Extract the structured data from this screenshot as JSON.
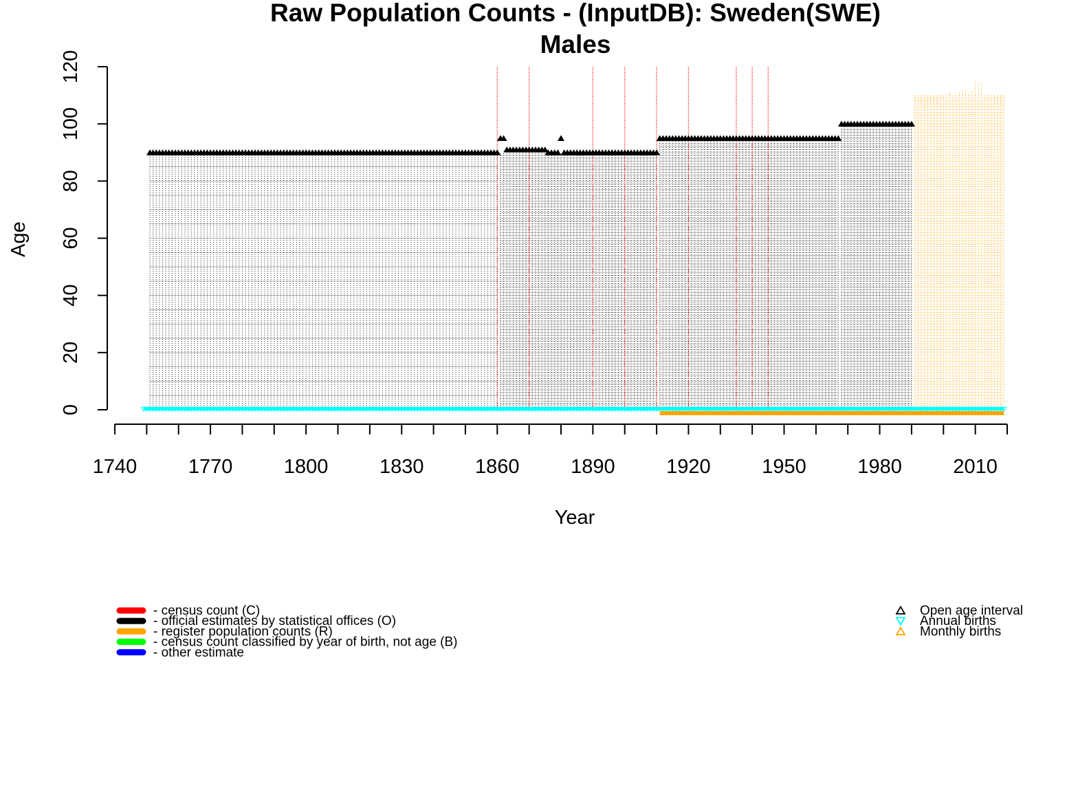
{
  "chart_data": {
    "type": "scatter",
    "title": "Raw Population Counts - (InputDB): Sweden(SWE)",
    "subtitle": "Males",
    "xlabel": "Year",
    "ylabel": "Age",
    "xlim": [
      1740,
      2020
    ],
    "ylim": [
      0,
      120
    ],
    "x_ticks": [
      1740,
      1770,
      1800,
      1830,
      1860,
      1890,
      1920,
      1950,
      1980,
      2010
    ],
    "y_ticks": [
      0,
      20,
      40,
      60,
      80,
      100,
      120
    ],
    "census_years": [
      1860,
      1870,
      1890,
      1900,
      1910,
      1920,
      1935,
      1940,
      1945
    ],
    "segments": [
      {
        "type": "O",
        "color": "#000000",
        "start": 1751,
        "end": 1860,
        "age_step": 5,
        "open_age": 90
      },
      {
        "type": "O",
        "color": "#000000",
        "start": 1861,
        "end": 1910,
        "age_step": 1,
        "open_age": 90
      },
      {
        "type": "O",
        "color": "#000000",
        "start": 1911,
        "end": 1967,
        "age_step": 1,
        "open_age": 95
      },
      {
        "type": "O",
        "color": "#000000",
        "start": 1968,
        "end": 1990,
        "age_step": 1,
        "open_age": 100
      },
      {
        "type": "R",
        "color": "#FFA500",
        "start": 1991,
        "end": 2019,
        "age_step": 1,
        "open_age": 110
      }
    ],
    "open_age_markers": [
      {
        "start": 1751,
        "end": 1860,
        "age": 90
      },
      {
        "start": 1861,
        "end": 1862,
        "age": 95
      },
      {
        "start": 1863,
        "end": 1870,
        "age": 91
      },
      {
        "start": 1871,
        "end": 1875,
        "age": 91
      },
      {
        "start": 1876,
        "end": 1879,
        "age": 90
      },
      {
        "start": 1880,
        "end": 1880,
        "age": 95
      },
      {
        "start": 1881,
        "end": 1910,
        "age": 90
      },
      {
        "start": 1911,
        "end": 1967,
        "age": 95
      },
      {
        "start": 1968,
        "end": 1990,
        "age": 100
      }
    ],
    "annual_births": {
      "start": 1749,
      "end": 2019,
      "age": 0,
      "color": "#00FFFF"
    },
    "monthly_births": {
      "start": 1911,
      "end": 2019,
      "age": -1,
      "color": "#FFA500"
    },
    "legend_left": [
      {
        "label": "- census count (C)",
        "color": "#FF0000"
      },
      {
        "label": "- official estimates by statistical offices (O)",
        "color": "#000000"
      },
      {
        "label": "- register population counts (R)",
        "color": "#FFA500"
      },
      {
        "label": "- census count classified by year of birth, not age (B)",
        "color": "#00FF00"
      },
      {
        "label": "- other estimate",
        "color": "#0000FF"
      }
    ],
    "legend_right": [
      {
        "label": "Open age interval",
        "symbol": "open-triangle-up",
        "color": "#000000"
      },
      {
        "label": "Annual births",
        "symbol": "open-triangle-down",
        "color": "#00FFFF"
      },
      {
        "label": "Monthly births",
        "symbol": "open-triangle-up",
        "color": "#FFA500"
      }
    ]
  }
}
